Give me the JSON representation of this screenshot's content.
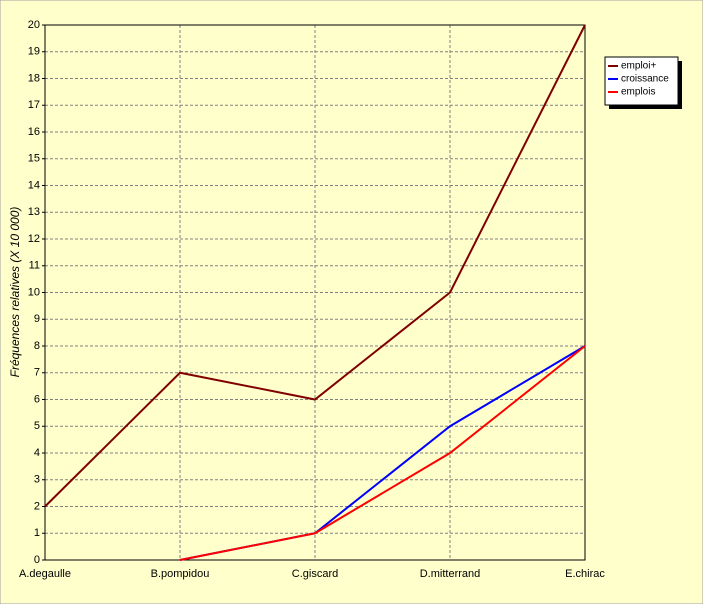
{
  "chart_data": {
    "type": "line",
    "y_label": "Fréquences relatives (X 10 000)",
    "categories": [
      "A.degaulle",
      "B.pompidou",
      "C.giscard",
      "D.mitterrand",
      "E.chirac"
    ],
    "series": [
      {
        "name": "emploi+",
        "color": "#800000",
        "values": [
          2,
          7,
          6,
          10,
          20
        ]
      },
      {
        "name": "croissance",
        "color": "#0000ff",
        "values": [
          null,
          0,
          1,
          5,
          8
        ]
      },
      {
        "name": "emplois",
        "color": "#ff0000",
        "values": [
          null,
          0,
          1,
          4,
          8
        ]
      }
    ],
    "ylim": [
      0,
      20
    ],
    "yticks": [
      0,
      1,
      2,
      3,
      4,
      5,
      6,
      7,
      8,
      9,
      10,
      11,
      12,
      13,
      14,
      15,
      16,
      17,
      18,
      19,
      20
    ],
    "grid": true
  }
}
